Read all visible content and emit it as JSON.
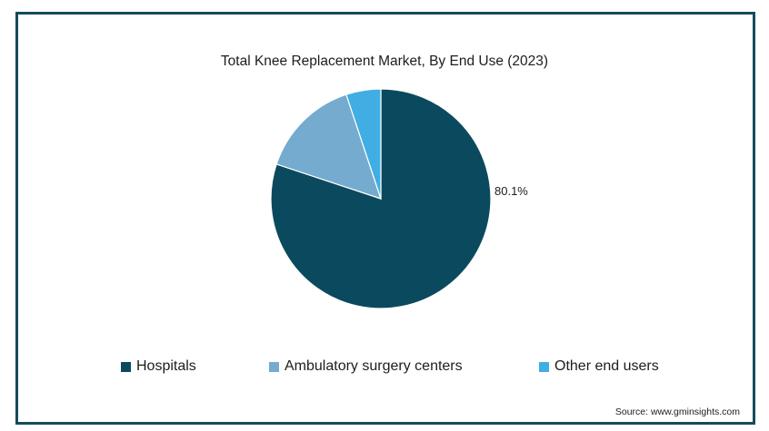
{
  "chart_data": {
    "type": "pie",
    "title": "Total Knee Replacement Market, By End Use (2023)",
    "slices": [
      {
        "name": "Hospitals",
        "value": 80.1,
        "color": "#0b4a5e",
        "label": "80.1%"
      },
      {
        "name": "Ambulatory surgery centers",
        "value": 14.8,
        "color": "#74abcf",
        "label": ""
      },
      {
        "name": "Other end users",
        "value": 5.1,
        "color": "#40aee3",
        "label": ""
      }
    ],
    "legend": {
      "position": "bottom",
      "entries": [
        "Hospitals",
        "Ambulatory surgery centers",
        "Other end users"
      ]
    },
    "source": "Source: www.gminsights.com"
  }
}
